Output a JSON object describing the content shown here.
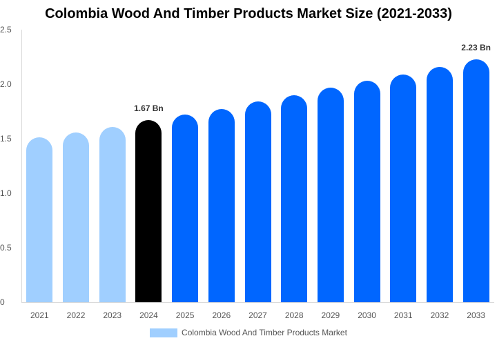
{
  "title": "Colombia Wood And Timber Products Market Size (2021-2033)",
  "legend": {
    "label": "Colombia Wood And Timber Products Market",
    "color": "#a0cfff"
  },
  "colors": {
    "historical": "#a0cfff",
    "base_year": "#000000",
    "forecast": "#0066ff"
  },
  "y_ticks": [
    "0",
    "0.5",
    "1.0",
    "1.5",
    "2.0",
    "2.5"
  ],
  "labels": {
    "base": "1.67 Bn",
    "end": "2.23 Bn"
  },
  "chart_data": {
    "type": "bar",
    "title": "Colombia Wood And Timber Products Market Size (2021-2033)",
    "xlabel": "",
    "ylabel": "",
    "ylim": [
      0,
      2.5
    ],
    "y_ticks": [
      0,
      0.5,
      1.0,
      1.5,
      2.0,
      2.5
    ],
    "grid": false,
    "legend_position": "bottom",
    "categories": [
      "2021",
      "2022",
      "2023",
      "2024",
      "2025",
      "2026",
      "2027",
      "2028",
      "2029",
      "2030",
      "2031",
      "2032",
      "2033"
    ],
    "series": [
      {
        "name": "Colombia Wood And Timber Products Market",
        "values": [
          1.51,
          1.56,
          1.61,
          1.67,
          1.72,
          1.77,
          1.84,
          1.9,
          1.97,
          2.03,
          2.09,
          2.16,
          2.23
        ]
      }
    ],
    "annotations": [
      {
        "category": "2024",
        "text": "1.67 Bn"
      },
      {
        "category": "2033",
        "text": "2.23 Bn"
      }
    ]
  }
}
